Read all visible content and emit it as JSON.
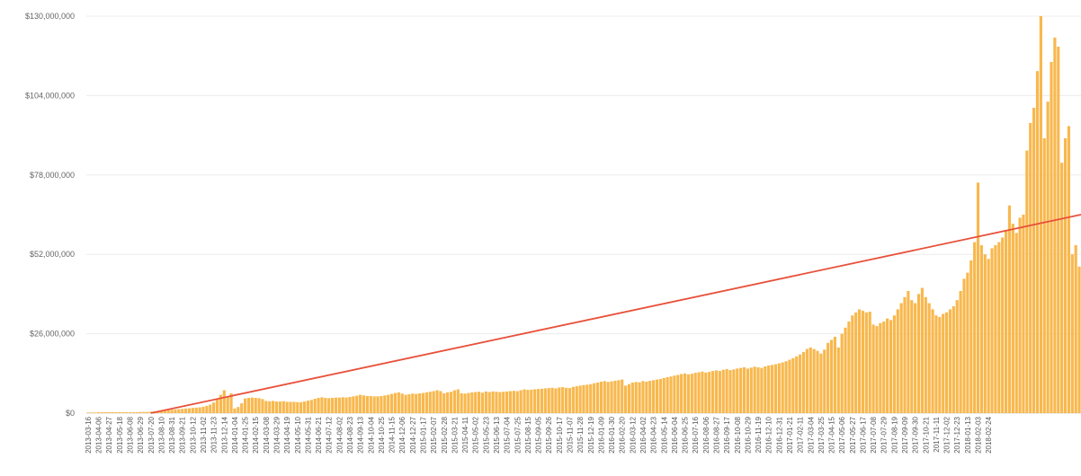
{
  "chart_data": {
    "type": "bar",
    "title": "",
    "xlabel": "",
    "ylabel": "",
    "ylim": [
      0,
      130000000
    ],
    "y_ticks": [
      {
        "value": 0,
        "label": "$0"
      },
      {
        "value": 26000000,
        "label": "$26,000,000"
      },
      {
        "value": 52000000,
        "label": "$52,000,000"
      },
      {
        "value": 78000000,
        "label": "$78,000,000"
      },
      {
        "value": 104000000,
        "label": "$104,000,000"
      },
      {
        "value": 130000000,
        "label": "$130,000,000"
      }
    ],
    "x_tick_labels": [
      "2013-03-16",
      "2013-04-06",
      "2013-04-27",
      "2013-05-18",
      "2013-06-08",
      "2013-06-29",
      "2013-07-20",
      "2013-08-10",
      "2013-08-31",
      "2013-09-21",
      "2013-10-12",
      "2013-11-02",
      "2013-11-23",
      "2013-12-14",
      "2014-01-04",
      "2014-01-25",
      "2014-02-15",
      "2014-03-08",
      "2014-03-29",
      "2014-04-19",
      "2014-05-10",
      "2014-05-31",
      "2014-06-21",
      "2014-07-12",
      "2014-08-02",
      "2014-08-23",
      "2014-09-13",
      "2014-10-04",
      "2014-10-25",
      "2014-11-15",
      "2014-12-06",
      "2014-12-27",
      "2015-01-17",
      "2015-02-07",
      "2015-02-28",
      "2015-03-21",
      "2015-04-11",
      "2015-05-02",
      "2015-05-23",
      "2015-06-13",
      "2015-07-04",
      "2015-07-25",
      "2015-08-15",
      "2015-09-05",
      "2015-09-26",
      "2015-10-17",
      "2015-11-07",
      "2015-11-28",
      "2015-12-19",
      "2016-01-09",
      "2016-01-30",
      "2016-02-20",
      "2016-03-12",
      "2016-04-02",
      "2016-04-23",
      "2016-05-14",
      "2016-06-04",
      "2016-06-25",
      "2016-07-16",
      "2016-08-06",
      "2016-08-27",
      "2016-09-17",
      "2016-10-08",
      "2016-10-29",
      "2016-11-19",
      "2016-12-10",
      "2016-12-31",
      "2017-01-21",
      "2017-02-11",
      "2017-03-04",
      "2017-03-25",
      "2017-04-15",
      "2017-05-06",
      "2017-05-27",
      "2017-06-17",
      "2017-07-08",
      "2017-07-29",
      "2017-08-19",
      "2017-09-09",
      "2017-09-30",
      "2017-10-21",
      "2017-11-11",
      "2017-12-02",
      "2017-12-23",
      "2018-01-13",
      "2018-02-03",
      "2018-02-24"
    ],
    "bar_color": "#F8B84E",
    "trend_color": "#E8503A",
    "grid": true,
    "legend": "none",
    "bars_per_label": 3,
    "values": [
      0.2,
      0.2,
      0.2,
      0.3,
      0.3,
      0.3,
      0.3,
      0.3,
      0.3,
      0.3,
      0.3,
      0.3,
      0.3,
      0.3,
      0.3,
      0.4,
      0.4,
      0.4,
      0.5,
      0.6,
      0.7,
      0.8,
      0.9,
      1.0,
      1.1,
      1.2,
      1.3,
      1.4,
      1.5,
      1.6,
      1.7,
      1.8,
      1.9,
      2.1,
      2.4,
      2.8,
      3.5,
      4.5,
      6.0,
      7.5,
      5.5,
      6.5,
      1.5,
      2.0,
      3.2,
      4.8,
      5.0,
      5.1,
      5.0,
      4.9,
      4.6,
      4.0,
      3.9,
      4.0,
      3.8,
      3.8,
      3.9,
      3.7,
      3.7,
      3.7,
      3.6,
      3.6,
      3.8,
      4.1,
      4.3,
      4.7,
      5.0,
      5.2,
      5.0,
      4.9,
      5.0,
      5.1,
      5.1,
      5.2,
      5.1,
      5.3,
      5.5,
      5.7,
      6.0,
      5.8,
      5.6,
      5.6,
      5.5,
      5.5,
      5.6,
      5.8,
      6.0,
      6.3,
      6.6,
      6.8,
      6.4,
      6.0,
      6.2,
      6.4,
      6.3,
      6.5,
      6.6,
      6.8,
      7.0,
      7.2,
      7.5,
      7.2,
      6.5,
      6.8,
      7.0,
      7.5,
      7.8,
      6.5,
      6.4,
      6.6,
      6.8,
      6.9,
      7.0,
      6.7,
      7.1,
      6.9,
      7.1,
      7.0,
      6.9,
      7.0,
      7.1,
      7.2,
      7.3,
      7.2,
      7.5,
      7.8,
      7.6,
      7.7,
      7.8,
      7.9,
      8.0,
      8.1,
      8.2,
      8.3,
      8.1,
      8.4,
      8.5,
      8.3,
      8.2,
      8.6,
      8.8,
      9.0,
      9.2,
      9.3,
      9.5,
      9.8,
      10.0,
      10.3,
      10.5,
      10.2,
      10.4,
      10.6,
      10.8,
      11.0,
      9.0,
      9.5,
      10.0,
      10.2,
      10.1,
      10.5,
      10.3,
      10.6,
      10.8,
      11.0,
      11.2,
      11.5,
      11.8,
      12.0,
      12.3,
      12.5,
      12.8,
      13.0,
      12.7,
      12.9,
      13.2,
      13.4,
      13.6,
      13.3,
      13.5,
      13.8,
      14.0,
      13.8,
      14.2,
      14.4,
      14.1,
      14.3,
      14.6,
      14.8,
      15.0,
      14.6,
      14.9,
      15.2,
      15.0,
      14.8,
      15.3,
      15.6,
      15.8,
      16.0,
      16.3,
      16.6,
      17.0,
      17.5,
      18.0,
      18.6,
      19.2,
      20.0,
      21.0,
      21.5,
      21.0,
      20.4,
      19.5,
      20.8,
      23.0,
      24.0,
      25.0,
      21.5,
      26.0,
      28.0,
      30.0,
      32.0,
      33.0,
      34.0,
      33.5,
      33.0,
      33.2,
      29.0,
      28.5,
      29.5,
      30.0,
      31.0,
      30.5,
      32.0,
      34.0,
      36.0,
      38.0,
      40.0,
      37.0,
      36.0,
      39.0,
      41.0,
      38.0,
      36.0,
      34.0,
      32.0,
      31.5,
      32.5,
      33.0,
      34.0,
      35.0,
      37.0,
      40.0,
      44.0,
      46.0,
      50.0,
      56.0,
      75.5,
      55.0,
      52.0,
      50.5,
      54.0,
      55.0,
      56.0,
      57.5,
      60.0,
      68.0,
      62.0,
      59.0,
      64.0,
      65.0,
      86.0,
      95.0,
      100.0,
      112.0,
      130.0,
      90.0,
      102.0,
      115.0,
      123.0,
      120.0,
      82.0,
      90.0,
      94.0,
      52.0,
      55.0,
      48.0
    ],
    "trend_line": [
      {
        "x": "2013-07-20",
        "y": 0
      },
      {
        "x": "2018-02-24",
        "y": 65000000
      }
    ]
  }
}
